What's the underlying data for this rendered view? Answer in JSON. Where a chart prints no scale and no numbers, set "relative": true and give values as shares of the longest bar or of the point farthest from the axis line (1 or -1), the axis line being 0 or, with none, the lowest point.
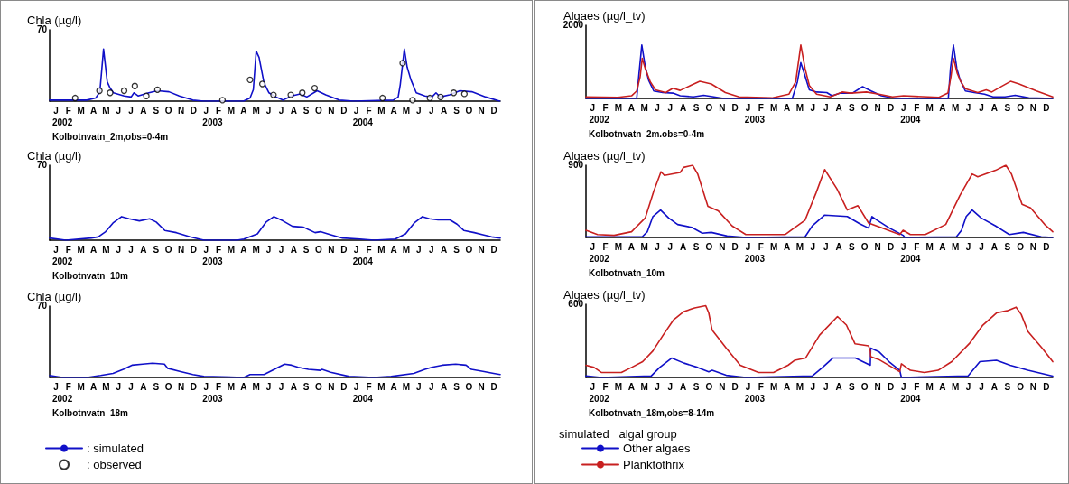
{
  "chart_data": [
    {
      "type": "line",
      "relative": true,
      "ylabel": "Chla (µg/l)",
      "xlabel": "Kolbotnvatn_2m,obs=0-4m",
      "legend": "bottom left",
      "annotations": [
        "70",
        "J",
        "F",
        "M",
        "A",
        "M",
        "J",
        "J",
        "A",
        "S",
        "O",
        "N",
        "D",
        "J",
        "F",
        "M",
        "A",
        "M",
        "J",
        "J",
        "A",
        "S",
        "O",
        "N",
        "D",
        "J",
        "F",
        "M",
        "A",
        "M",
        "J",
        "J",
        "A",
        "S",
        "O",
        "N",
        "D"
      ],
      "xlim": [
        "2002-01-01",
        "2004-12-31"
      ],
      "xticks": [
        {
          "value": "2002-02-01",
          "label": "2002"
        },
        {
          "value": "2003-02-01",
          "label": "2003"
        },
        {
          "value": "2004-02-01",
          "label": "2004"
        }
      ],
      "series": [
        {
          "name": ": simulated",
          "color": "#1010c8",
          "x": [
            "2002-01-01",
            "2002-04-01",
            "2002-04-23",
            "2002-05-03",
            "2002-05-12",
            "2002-05-21",
            "2002-05-28",
            "2002-06-05",
            "2002-07-01",
            "2002-07-18",
            "2002-07-25",
            "2002-08-04",
            "2002-08-30",
            "2002-09-20",
            "2002-10-18",
            "2002-11-12",
            "2002-12-15",
            "2003-01-10",
            "2003-04-17",
            "2003-05-03",
            "2003-05-11",
            "2003-05-18",
            "2003-05-25",
            "2003-06-06",
            "2003-06-18",
            "2003-07-05",
            "2003-07-22",
            "2003-08-12",
            "2003-09-02",
            "2003-09-18",
            "2003-10-13",
            "2003-11-03",
            "2003-12-06",
            "2004-01-10",
            "2004-04-15",
            "2004-04-27",
            "2004-05-02",
            "2004-05-12",
            "2004-05-19",
            "2004-05-28",
            "2004-06-10",
            "2004-07-01",
            "2004-07-18",
            "2004-07-28",
            "2004-08-07",
            "2004-08-30",
            "2004-09-24",
            "2004-10-23",
            "2004-11-26",
            "2004-12-30"
          ],
          "values": [
            0.02,
            0.02,
            0.06,
            0.18,
            1,
            0.37,
            0.25,
            0.16,
            0.1,
            0.08,
            0.16,
            0.1,
            0.16,
            0.2,
            0.18,
            0.1,
            0.02,
            0,
            0,
            0.06,
            0.22,
            0.96,
            0.84,
            0.35,
            0.16,
            0.08,
            0.02,
            0.1,
            0.14,
            0.08,
            0.2,
            0.12,
            0.02,
            0,
            0.02,
            0.08,
            0.31,
            1,
            0.65,
            0.41,
            0.16,
            0.1,
            0.08,
            0.16,
            0.08,
            0.12,
            0.2,
            0.18,
            0.08,
            0
          ]
        },
        {
          "name": ": observed",
          "type": "scatter",
          "marker": "circle",
          "color": "#000000",
          "x": [
            "2002-03-04",
            "2002-05-02",
            "2002-05-28",
            "2002-07-01",
            "2002-07-27",
            "2002-08-24",
            "2002-09-20",
            "2003-02-25",
            "2003-05-03",
            "2003-06-02",
            "2003-06-29",
            "2003-08-10",
            "2003-09-07",
            "2003-10-07",
            "2004-03-20",
            "2004-05-08",
            "2004-06-01",
            "2004-07-13",
            "2004-08-08",
            "2004-09-09",
            "2004-10-05"
          ],
          "values": [
            0.06,
            0.2,
            0.16,
            0.2,
            0.29,
            0.1,
            0.22,
            0.02,
            0.41,
            0.33,
            0.12,
            0.12,
            0.16,
            0.25,
            0.06,
            0.73,
            0.02,
            0.06,
            0.08,
            0.16,
            0.14
          ]
        }
      ]
    },
    {
      "type": "line",
      "relative": true,
      "ylabel": "Chla (µg/l)",
      "xlabel": "Kolbotnvatn_10m",
      "annotations": [
        "70",
        "J",
        "F",
        "M",
        "A",
        "M",
        "J",
        "J",
        "A",
        "S",
        "O",
        "N",
        "D",
        "J",
        "F",
        "M",
        "A",
        "M",
        "J",
        "J",
        "A",
        "S",
        "O",
        "N",
        "D",
        "J",
        "F",
        "M",
        "A",
        "M",
        "J",
        "J",
        "A",
        "S",
        "O",
        "N",
        "D"
      ],
      "xlim": [
        "2002-01-01",
        "2004-12-31"
      ],
      "xticks": [
        {
          "value": "2002-02-01",
          "label": "2002"
        },
        {
          "value": "2003-02-01",
          "label": "2003"
        },
        {
          "value": "2004-02-01",
          "label": "2004"
        }
      ],
      "series": [
        {
          "color": "#1010c8",
          "x": [
            "2002-01-01",
            "2002-02-09",
            "2002-04-12",
            "2002-04-29",
            "2002-05-17",
            "2002-06-04",
            "2002-06-25",
            "2002-07-13",
            "2002-08-07",
            "2002-09-01",
            "2002-09-17",
            "2002-10-08",
            "2002-11-05",
            "2002-12-08",
            "2003-01-11",
            "2003-04-01",
            "2003-04-18",
            "2003-05-21",
            "2003-06-11",
            "2003-06-30",
            "2003-07-22",
            "2003-08-14",
            "2003-09-10",
            "2003-10-08",
            "2003-10-21",
            "2003-11-15",
            "2003-12-14",
            "2004-01-25",
            "2004-02-28",
            "2004-04-20",
            "2004-05-15",
            "2004-06-05",
            "2004-06-25",
            "2004-07-12",
            "2004-08-02",
            "2004-08-31",
            "2004-09-17",
            "2004-10-04",
            "2004-10-29",
            "2004-11-19",
            "2004-12-10",
            "2004-12-31"
          ],
          "values": [
            0.09,
            0,
            0.09,
            0.14,
            0.36,
            0.73,
            1,
            0.91,
            0.82,
            0.91,
            0.77,
            0.41,
            0.32,
            0.14,
            0,
            0,
            0.05,
            0.27,
            0.77,
            1,
            0.82,
            0.59,
            0.55,
            0.32,
            0.36,
            0.23,
            0.09,
            0.05,
            0,
            0.05,
            0.27,
            0.73,
            1,
            0.91,
            0.86,
            0.86,
            0.68,
            0.41,
            0.32,
            0.23,
            0.14,
            0.09
          ]
        }
      ]
    },
    {
      "type": "line",
      "relative": true,
      "ylabel": "Chla (µg/l)",
      "xlabel": "Kolbotnvatn_18m",
      "annotations": [
        "70",
        "J",
        "F",
        "M",
        "A",
        "M",
        "J",
        "J",
        "A",
        "S",
        "O",
        "N",
        "D",
        "J",
        "F",
        "M",
        "A",
        "M",
        "J",
        "J",
        "A",
        "S",
        "O",
        "N",
        "D",
        "J",
        "F",
        "M",
        "A",
        "M",
        "J",
        "J",
        "A",
        "S",
        "O",
        "N",
        "D"
      ],
      "xlim": [
        "2002-01-01",
        "2004-12-31"
      ],
      "xticks": [
        {
          "value": "2002-02-01",
          "label": "2002"
        },
        {
          "value": "2003-02-01",
          "label": "2003"
        },
        {
          "value": "2004-02-01",
          "label": "2004"
        }
      ],
      "series": [
        {
          "color": "#1010c8",
          "x": [
            "2002-01-01",
            "2002-02-01",
            "2002-04-02",
            "2002-05-05",
            "2002-06-04",
            "2002-06-29",
            "2002-07-20",
            "2002-08-15",
            "2002-09-08",
            "2002-10-07",
            "2002-10-15",
            "2002-11-13",
            "2002-12-15",
            "2003-01-11",
            "2003-04-18",
            "2003-05-03",
            "2003-06-06",
            "2003-07-01",
            "2003-07-26",
            "2003-08-12",
            "2003-08-28",
            "2003-09-22",
            "2003-10-21",
            "2003-10-25",
            "2003-11-15",
            "2003-12-30",
            "2004-02-28",
            "2004-04-10",
            "2004-06-04",
            "2004-07-01",
            "2004-07-18",
            "2004-08-12",
            "2004-09-14",
            "2004-10-09",
            "2004-10-22",
            "2004-11-19",
            "2004-12-15",
            "2004-12-31"
          ],
          "values": [
            0.14,
            0,
            0,
            0.14,
            0.29,
            0.57,
            0.86,
            0.93,
            1,
            0.93,
            0.64,
            0.43,
            0.21,
            0.07,
            0,
            0.21,
            0.21,
            0.57,
            0.93,
            0.86,
            0.71,
            0.57,
            0.5,
            0.57,
            0.36,
            0.07,
            0,
            0.07,
            0.29,
            0.57,
            0.71,
            0.86,
            0.93,
            0.86,
            0.57,
            0.43,
            0.29,
            0.21
          ]
        }
      ]
    },
    {
      "type": "line",
      "relative": true,
      "ylabel": "Algaes (µg/l_tv)",
      "xlabel": "Kolbotnvatn_2m,obs=0-4m",
      "annotations": [
        "2000",
        "J",
        "F",
        "M",
        "A",
        "M",
        "J",
        "J",
        "A",
        "S",
        "O",
        "N",
        "D",
        "J",
        "F",
        "M",
        "A",
        "M",
        "J",
        "J",
        "A",
        "S",
        "O",
        "N",
        "D",
        "J",
        "F",
        "M",
        "A",
        "M",
        "J",
        "J",
        "A",
        "S",
        "O",
        "N",
        "D"
      ],
      "xlim": [
        "2002-01-01",
        "2004-12-31"
      ],
      "xticks": [
        {
          "value": "2002-02-01",
          "label": "2002"
        },
        {
          "value": "2003-02-01",
          "label": "2003"
        },
        {
          "value": "2004-02-01",
          "label": "2004"
        }
      ],
      "series": [
        {
          "color": "#1010c8",
          "x": [
            "2002-01-01",
            "2002-04-30",
            "2002-05-05",
            "2002-05-12",
            "2002-05-20",
            "2002-05-28",
            "2002-06-09",
            "2002-06-30",
            "2002-07-24",
            "2002-08-10",
            "2002-09-10",
            "2002-10-04",
            "2002-10-28",
            "2002-11-20",
            "2003-04-30",
            "2003-05-12",
            "2003-05-20",
            "2003-05-28",
            "2003-06-09",
            "2003-06-26",
            "2003-07-20",
            "2003-08-01",
            "2003-08-21",
            "2003-09-18",
            "2003-10-12",
            "2003-11-01",
            "2003-11-25",
            "2003-12-28",
            "2004-04-30",
            "2004-05-05",
            "2004-05-12",
            "2004-05-20",
            "2004-05-28",
            "2004-06-09",
            "2004-06-30",
            "2004-07-24",
            "2004-08-13",
            "2004-09-10",
            "2004-10-04",
            "2004-11-05",
            "2004-12-31"
          ],
          "values": [
            0,
            0,
            0.43,
            1,
            0.6,
            0.34,
            0.14,
            0.11,
            0.1,
            0.05,
            0.03,
            0.06,
            0.03,
            0,
            0,
            0.31,
            0.67,
            0.47,
            0.16,
            0.12,
            0.11,
            0.05,
            0.1,
            0.1,
            0.22,
            0.14,
            0.05,
            0,
            0,
            0.56,
            1,
            0.56,
            0.34,
            0.14,
            0.11,
            0.08,
            0.03,
            0.03,
            0.06,
            0.01,
            0
          ]
        },
        {
          "color": "#c82020",
          "x": [
            "2002-01-01",
            "2002-03-17",
            "2002-04-18",
            "2002-04-30",
            "2002-05-08",
            "2002-05-13",
            "2002-05-20",
            "2002-06-01",
            "2002-06-13",
            "2002-07-07",
            "2002-07-24",
            "2002-08-10",
            "2002-09-03",
            "2002-09-25",
            "2002-10-22",
            "2002-11-24",
            "2002-12-26",
            "2003-03-13",
            "2003-04-22",
            "2003-05-08",
            "2003-05-20",
            "2003-05-30",
            "2003-06-09",
            "2003-06-26",
            "2003-07-28",
            "2003-08-25",
            "2003-09-14",
            "2003-10-21",
            "2003-11-19",
            "2003-12-21",
            "2004-01-16",
            "2004-04-08",
            "2004-04-29",
            "2004-05-06",
            "2004-05-12",
            "2004-05-21",
            "2004-05-29",
            "2004-06-09",
            "2004-07-08",
            "2004-07-28",
            "2004-08-10",
            "2004-09-03",
            "2004-09-23",
            "2004-10-13",
            "2004-11-23",
            "2004-12-31"
          ],
          "values": [
            0.03,
            0.02,
            0.05,
            0.14,
            0.4,
            0.75,
            0.56,
            0.31,
            0.16,
            0.11,
            0.19,
            0.15,
            0.24,
            0.32,
            0.27,
            0.11,
            0.03,
            0.01,
            0.08,
            0.31,
            1,
            0.56,
            0.24,
            0.08,
            0.03,
            0.12,
            0.1,
            0.12,
            0.08,
            0.03,
            0.05,
            0.02,
            0.1,
            0.4,
            0.75,
            0.47,
            0.32,
            0.18,
            0.11,
            0.16,
            0.12,
            0.23,
            0.32,
            0.27,
            0.14,
            0.03
          ]
        }
      ]
    },
    {
      "type": "line",
      "relative": true,
      "ylabel": "Algaes (µg/l_tv)",
      "xlabel": "Kolbotnvatn_10m",
      "annotations": [
        "900",
        "J",
        "F",
        "M",
        "A",
        "M",
        "J",
        "J",
        "A",
        "S",
        "O",
        "N",
        "D",
        "J",
        "F",
        "M",
        "A",
        "M",
        "J",
        "J",
        "A",
        "S",
        "O",
        "N",
        "D",
        "J",
        "F",
        "M",
        "A",
        "M",
        "J",
        "J",
        "A",
        "S",
        "O",
        "N",
        "D"
      ],
      "xlim": [
        "2002-01-01",
        "2004-12-31"
      ],
      "xticks": [
        {
          "value": "2002-02-01",
          "label": "2002"
        },
        {
          "value": "2003-02-01",
          "label": "2003"
        },
        {
          "value": "2004-02-01",
          "label": "2004"
        }
      ],
      "series": [
        {
          "color": "#1010c8",
          "x": [
            "2002-01-01",
            "2002-05-13",
            "2002-05-25",
            "2002-06-07",
            "2002-06-25",
            "2002-07-14",
            "2002-08-04",
            "2002-09-06",
            "2002-10-01",
            "2002-10-22",
            "2002-11-28",
            "2003-01-11",
            "2003-05-30",
            "2003-06-16",
            "2003-07-15",
            "2003-09-06",
            "2003-10-05",
            "2003-10-26",
            "2003-11-03",
            "2003-11-15",
            "2003-12-14",
            "2004-01-15",
            "2004-01-19",
            "2004-05-19",
            "2004-05-31",
            "2004-06-11",
            "2004-06-25",
            "2004-07-16",
            "2004-08-19",
            "2004-09-20",
            "2004-10-23",
            "2004-12-04",
            "2004-12-31"
          ],
          "values": [
            0.01,
            0.01,
            0.08,
            0.29,
            0.38,
            0.27,
            0.18,
            0.14,
            0.06,
            0.07,
            0.02,
            0,
            0.01,
            0.16,
            0.31,
            0.29,
            0.19,
            0.13,
            0.29,
            0.24,
            0.13,
            0.03,
            0,
            0.01,
            0.1,
            0.29,
            0.38,
            0.27,
            0.16,
            0.04,
            0.07,
            0.01,
            0
          ]
        },
        {
          "color": "#c82020",
          "x": [
            "2002-01-01",
            "2002-01-28",
            "2002-03-08",
            "2002-04-18",
            "2002-05-20",
            "2002-06-09",
            "2002-06-26",
            "2002-07-04",
            "2002-08-10",
            "2002-08-18",
            "2002-09-08",
            "2002-09-20",
            "2002-10-14",
            "2002-11-07",
            "2002-12-10",
            "2003-01-11",
            "2003-04-13",
            "2003-05-30",
            "2003-06-25",
            "2003-07-15",
            "2003-08-13",
            "2003-09-06",
            "2003-10-01",
            "2003-10-26",
            "2003-11-27",
            "2004-01-07",
            "2004-01-15",
            "2004-02-01",
            "2004-03-07",
            "2004-04-24",
            "2004-05-27",
            "2004-06-25",
            "2004-07-08",
            "2004-08-19",
            "2004-09-12",
            "2004-09-25",
            "2004-10-20",
            "2004-11-09",
            "2004-12-12",
            "2004-12-31"
          ],
          "values": [
            0.1,
            0.04,
            0.03,
            0.08,
            0.27,
            0.64,
            0.91,
            0.86,
            0.9,
            0.97,
            1,
            0.88,
            0.43,
            0.37,
            0.16,
            0.04,
            0.04,
            0.24,
            0.62,
            0.94,
            0.67,
            0.38,
            0.44,
            0.2,
            0.13,
            0.04,
            0.1,
            0.04,
            0.04,
            0.18,
            0.58,
            0.88,
            0.84,
            0.93,
            1,
            0.88,
            0.46,
            0.41,
            0.18,
            0.08
          ]
        }
      ]
    },
    {
      "type": "line",
      "relative": true,
      "ylabel": "Algaes (µg/l_tv)",
      "xlabel": "Kolbotnvatn_18m,obs=8-14m",
      "legend": "bottom left",
      "legend_title": "simulated   algal group",
      "annotations": [
        "600",
        "J",
        "F",
        "M",
        "A",
        "M",
        "J",
        "J",
        "A",
        "S",
        "O",
        "N",
        "D",
        "J",
        "F",
        "M",
        "A",
        "M",
        "J",
        "J",
        "A",
        "S",
        "O",
        "N",
        "D",
        "J",
        "F",
        "M",
        "A",
        "M",
        "J",
        "J",
        "A",
        "S",
        "O",
        "N",
        "D"
      ],
      "xlim": [
        "2002-01-01",
        "2004-12-31"
      ],
      "xticks": [
        {
          "value": "2002-02-01",
          "label": "2002"
        },
        {
          "value": "2003-02-01",
          "label": "2003"
        },
        {
          "value": "2004-02-01",
          "label": "2004"
        }
      ],
      "series": [
        {
          "name": "Other algaes",
          "color": "#1010c8",
          "x": [
            "2002-01-01",
            "2002-02-06",
            "2002-06-03",
            "2002-06-23",
            "2002-07-21",
            "2002-08-19",
            "2002-09-20",
            "2002-10-16",
            "2002-10-24",
            "2002-11-26",
            "2003-01-11",
            "2003-06-16",
            "2003-07-10",
            "2003-08-03",
            "2003-09-25",
            "2003-10-30",
            "2003-10-31",
            "2003-11-19",
            "2003-12-13",
            "2004-01-07",
            "2004-01-11",
            "2004-06-15",
            "2004-07-13",
            "2004-08-21",
            "2004-09-22",
            "2004-11-03",
            "2004-12-31"
          ],
          "values": [
            0.02,
            0,
            0.02,
            0.14,
            0.27,
            0.2,
            0.14,
            0.08,
            0.1,
            0.03,
            0,
            0.02,
            0.14,
            0.27,
            0.27,
            0.17,
            0.41,
            0.36,
            0.22,
            0.1,
            0,
            0.02,
            0.22,
            0.24,
            0.17,
            0.1,
            0.02
          ]
        },
        {
          "name": "Planktothrix",
          "color": "#c82020",
          "x": [
            "2002-01-01",
            "2002-01-20",
            "2002-02-06",
            "2002-03-25",
            "2002-04-18",
            "2002-05-14",
            "2002-06-07",
            "2002-07-01",
            "2002-07-25",
            "2002-08-19",
            "2002-09-13",
            "2002-10-09",
            "2002-10-16",
            "2002-10-24",
            "2002-11-26",
            "2002-12-29",
            "2003-02-10",
            "2003-03-17",
            "2003-04-20",
            "2003-05-06",
            "2003-05-31",
            "2003-07-03",
            "2003-08-14",
            "2003-09-04",
            "2003-09-24",
            "2003-10-26",
            "2003-10-30",
            "2003-10-31",
            "2003-11-19",
            "2004-01-07",
            "2004-01-11",
            "2004-02-01",
            "2004-03-05",
            "2004-04-06",
            "2004-05-08",
            "2004-06-18",
            "2004-07-20",
            "2004-08-21",
            "2004-09-15",
            "2004-10-06",
            "2004-10-18",
            "2004-11-03",
            "2004-12-06",
            "2004-12-31"
          ],
          "values": [
            0.17,
            0.14,
            0.07,
            0.07,
            0.14,
            0.22,
            0.37,
            0.59,
            0.8,
            0.92,
            0.97,
            1,
            0.9,
            0.66,
            0.41,
            0.17,
            0.07,
            0.07,
            0.17,
            0.24,
            0.27,
            0.59,
            0.85,
            0.73,
            0.47,
            0.44,
            0.37,
            0.29,
            0.25,
            0.08,
            0.19,
            0.1,
            0.07,
            0.1,
            0.22,
            0.47,
            0.73,
            0.9,
            0.93,
            0.98,
            0.88,
            0.64,
            0.41,
            0.22
          ]
        }
      ]
    }
  ]
}
